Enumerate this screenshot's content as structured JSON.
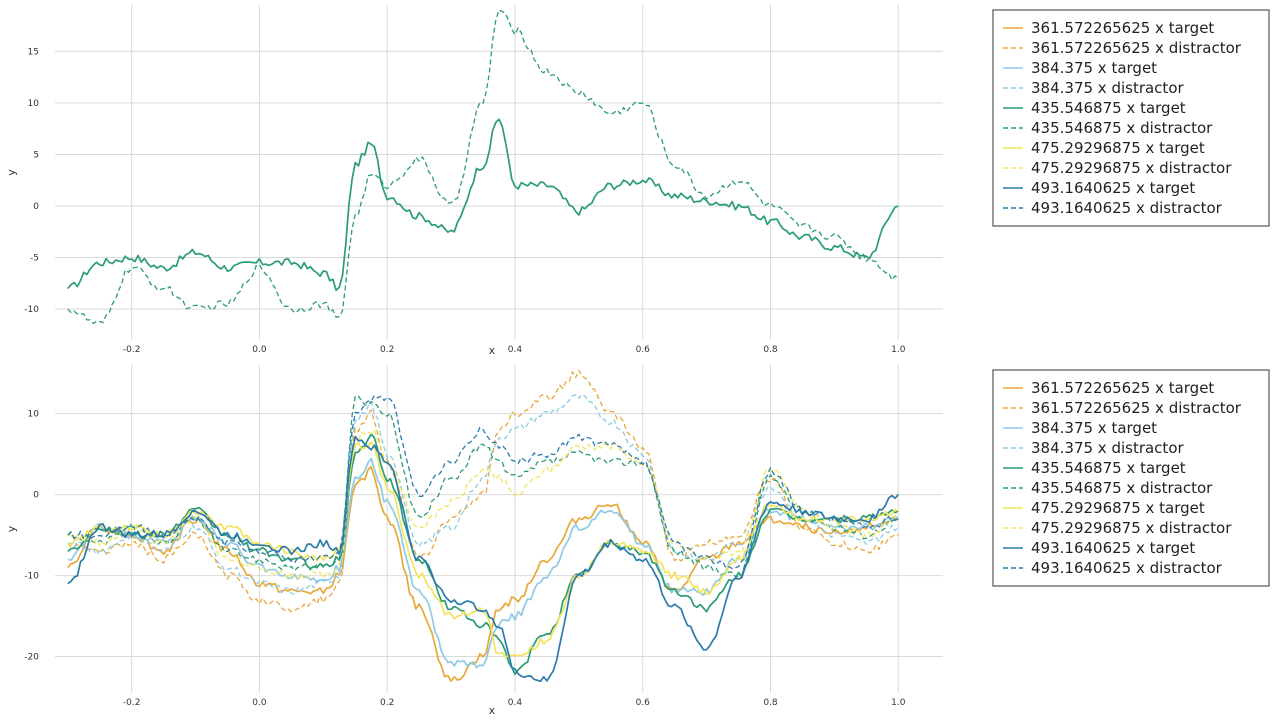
{
  "legend_entries": [
    "361.572265625 x target",
    "361.572265625 x distractor",
    "384.375 x target",
    "384.375 x distractor",
    "435.546875 x target",
    "435.546875 x distractor",
    "475.29296875 x target",
    "475.29296875 x distractor",
    "493.1640625 x target",
    "493.1640625 x distractor"
  ],
  "colors": {
    "361.572265625": "#e8a838",
    "384.375": "#8ecae6",
    "435.546875": "#2a9d72",
    "475.29296875": "#f2e45c",
    "493.1640625": "#2b7bab"
  },
  "chart_data": [
    {
      "type": "line",
      "title": "",
      "xlabel": "x",
      "ylabel": "y",
      "xlim": [
        -0.32,
        1.07
      ],
      "ylim": [
        -13,
        19.5
      ],
      "grid": true,
      "legend_position": "right",
      "xticks": [
        "-0.2",
        "0.0",
        "0.2",
        "0.4",
        "0.6",
        "0.8",
        "1.0"
      ],
      "xtick_values": [
        -0.2,
        0.0,
        0.2,
        0.4,
        0.6,
        0.8,
        1.0
      ],
      "yticks": [
        "-10",
        "-5",
        "0",
        "5",
        "10",
        "15"
      ],
      "ytick_values": [
        -10,
        -5,
        0,
        5,
        10,
        15
      ],
      "x": [
        -0.3,
        -0.25,
        -0.2,
        -0.15,
        -0.1,
        -0.05,
        0.0,
        0.05,
        0.1,
        0.125,
        0.15,
        0.175,
        0.2,
        0.25,
        0.3,
        0.35,
        0.375,
        0.4,
        0.45,
        0.5,
        0.55,
        0.6,
        0.65,
        0.7,
        0.75,
        0.8,
        0.85,
        0.9,
        0.95,
        1.0
      ],
      "series": [
        {
          "name": "435.546875 x target",
          "style": "solid",
          "color_key": "435.546875",
          "values": [
            -8,
            -5.5,
            -5,
            -6,
            -4.5,
            -6,
            -5.5,
            -5.5,
            -6.5,
            -8,
            4,
            6,
            1,
            -1,
            -2.5,
            4,
            8.5,
            2,
            2,
            -0.5,
            2,
            2.5,
            1,
            0.5,
            0,
            -1.5,
            -3,
            -4,
            -5,
            0
          ]
        },
        {
          "name": "435.546875 x distractor",
          "style": "dashed",
          "color_key": "435.546875",
          "values": [
            -10,
            -11.5,
            -6,
            -8,
            -10,
            -9.5,
            -6,
            -10,
            -9.5,
            -11,
            -1,
            3,
            2,
            4.5,
            0,
            10,
            19,
            17,
            13,
            11,
            9,
            10,
            4,
            1,
            2.5,
            0,
            -2,
            -3,
            -5,
            -7
          ]
        }
      ]
    },
    {
      "type": "line",
      "title": "",
      "xlabel": "x",
      "ylabel": "y",
      "xlim": [
        -0.32,
        1.07
      ],
      "ylim": [
        -24.5,
        16
      ],
      "grid": true,
      "legend_position": "right",
      "xticks": [
        "-0.2",
        "0.0",
        "0.2",
        "0.4",
        "0.6",
        "0.8",
        "1.0"
      ],
      "xtick_values": [
        -0.2,
        0.0,
        0.2,
        0.4,
        0.6,
        0.8,
        1.0
      ],
      "yticks": [
        "-20",
        "-10",
        "0",
        "10"
      ],
      "ytick_values": [
        -20,
        -10,
        0,
        10
      ],
      "x": [
        -0.3,
        -0.25,
        -0.2,
        -0.15,
        -0.1,
        -0.05,
        0.0,
        0.05,
        0.1,
        0.125,
        0.15,
        0.175,
        0.2,
        0.25,
        0.3,
        0.35,
        0.375,
        0.4,
        0.45,
        0.5,
        0.55,
        0.6,
        0.65,
        0.7,
        0.75,
        0.8,
        0.85,
        0.9,
        0.95,
        1.0
      ],
      "series": [
        {
          "name": "361.572265625 x target",
          "style": "solid",
          "color_key": "361.572265625",
          "values": [
            -9,
            -4,
            -5,
            -7,
            -3,
            -7,
            -11,
            -12,
            -12,
            -10,
            1,
            3,
            -3,
            -14,
            -23,
            -20,
            -14,
            -13,
            -8,
            -3,
            -1,
            -6,
            -12,
            -8,
            -6,
            -3,
            -4,
            -5,
            -4,
            -3
          ]
        },
        {
          "name": "361.572265625 x distractor",
          "style": "dashed",
          "color_key": "361.572265625",
          "values": [
            -6,
            -7,
            -6,
            -8,
            -5,
            -10,
            -13,
            -14,
            -13,
            -11,
            8,
            10,
            4,
            -8,
            -3,
            0,
            8,
            10,
            12,
            15,
            10,
            6,
            -8,
            -6,
            -5,
            2,
            -4,
            -6,
            -7,
            -5
          ]
        },
        {
          "name": "384.375 x target",
          "style": "solid",
          "color_key": "384.375",
          "values": [
            -8,
            -4,
            -5,
            -6,
            -3,
            -6,
            -9,
            -10,
            -11,
            -9,
            2,
            4,
            -1,
            -12,
            -21,
            -21,
            -16,
            -15,
            -10,
            -4,
            -2,
            -6,
            -12,
            -12,
            -8,
            -2,
            -3,
            -4,
            -4,
            -3
          ]
        },
        {
          "name": "384.375 x distractor",
          "style": "dashed",
          "color_key": "384.375",
          "values": [
            -6,
            -7,
            -5,
            -7,
            -4,
            -9,
            -11,
            -12,
            -11,
            -10,
            9,
            11,
            5,
            -6,
            -4,
            2,
            7,
            8,
            10,
            12,
            9,
            5,
            -7,
            -8,
            -6,
            1,
            -3,
            -5,
            -6,
            -4
          ]
        },
        {
          "name": "435.546875 x target",
          "style": "solid",
          "color_key": "435.546875",
          "values": [
            -7,
            -4,
            -5,
            -5,
            -2,
            -5,
            -7,
            -8,
            -9,
            -8,
            5,
            7,
            2,
            -8,
            -14,
            -16,
            -18,
            -22,
            -17,
            -10,
            -6,
            -7,
            -12,
            -14,
            -10,
            -2,
            -3,
            -3,
            -3,
            -2
          ]
        },
        {
          "name": "435.546875 x distractor",
          "style": "dashed",
          "color_key": "435.546875",
          "values": [
            -5,
            -6,
            -4,
            -6,
            -3,
            -7,
            -8,
            -9,
            -9,
            -8,
            12,
            11,
            10,
            -3,
            2,
            6,
            4,
            2,
            4,
            5,
            4,
            4,
            -7,
            -9,
            -10,
            2,
            -2,
            -4,
            -5,
            -3
          ]
        },
        {
          "name": "475.29296875 x target",
          "style": "solid",
          "color_key": "475.29296875",
          "values": [
            -6,
            -4,
            -4,
            -5,
            -2,
            -4,
            -6,
            -7,
            -8,
            -7,
            6,
            6,
            1,
            -10,
            -15,
            -14,
            -20,
            -20,
            -18,
            -10,
            -6,
            -7,
            -10,
            -12,
            -8,
            -1,
            -3,
            -3,
            -3,
            -2
          ]
        },
        {
          "name": "475.29296875 x distractor",
          "style": "dashed",
          "color_key": "475.29296875",
          "values": [
            -5,
            -6,
            -4,
            -6,
            -3,
            -8,
            -9,
            -10,
            -10,
            -9,
            7,
            8,
            4,
            -4,
            -1,
            3,
            2,
            0,
            3,
            6,
            6,
            4,
            -6,
            -8,
            -7,
            3,
            -2,
            -4,
            -5,
            -3
          ]
        },
        {
          "name": "493.1640625 x target",
          "style": "solid",
          "color_key": "493.1640625",
          "values": [
            -11,
            -4,
            -5,
            -5,
            -2,
            -5,
            -6,
            -7,
            -6,
            -7,
            7,
            6,
            4,
            -8,
            -13,
            -14,
            -16,
            -22,
            -23,
            -10,
            -6,
            -8,
            -14,
            -19,
            -10,
            -1,
            -2,
            -3,
            -3,
            0
          ]
        },
        {
          "name": "493.1640625 x distractor",
          "style": "dashed",
          "color_key": "493.1640625",
          "values": [
            -5,
            -5,
            -4,
            -5,
            -3,
            -6,
            -7,
            -8,
            -8,
            -7,
            10,
            12,
            12,
            0,
            4,
            8,
            6,
            4,
            5,
            7,
            6,
            4,
            -6,
            -8,
            -9,
            3,
            -2,
            -3,
            -4,
            -3
          ]
        }
      ]
    }
  ]
}
